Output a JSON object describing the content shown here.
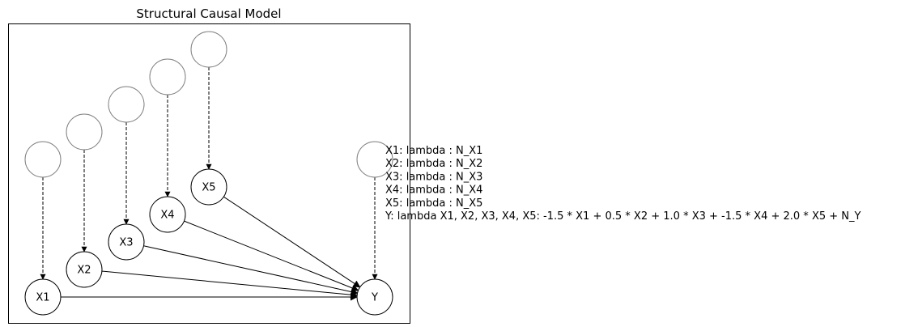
{
  "title": "Structural Causal Model",
  "nodes": [
    {
      "id": "X1",
      "label": "X1"
    },
    {
      "id": "X2",
      "label": "X2"
    },
    {
      "id": "X3",
      "label": "X3"
    },
    {
      "id": "X4",
      "label": "X4"
    },
    {
      "id": "X5",
      "label": "X5"
    },
    {
      "id": "Y",
      "label": "Y"
    }
  ],
  "noise_nodes": [
    {
      "target": "X1",
      "label": ""
    },
    {
      "target": "X2",
      "label": ""
    },
    {
      "target": "X3",
      "label": ""
    },
    {
      "target": "X4",
      "label": ""
    },
    {
      "target": "X5",
      "label": ""
    },
    {
      "target": "Y",
      "label": ""
    }
  ],
  "edges": [
    {
      "from": "X1",
      "to": "Y"
    },
    {
      "from": "X2",
      "to": "Y"
    },
    {
      "from": "X3",
      "to": "Y"
    },
    {
      "from": "X4",
      "to": "Y"
    },
    {
      "from": "X5",
      "to": "Y"
    }
  ],
  "equations": [
    "X1: lambda : N_X1",
    "X2: lambda : N_X2",
    "X3: lambda : N_X3",
    "X4: lambda : N_X4",
    "X5: lambda : N_X5",
    "Y: lambda X1, X2, X3, X4, X5: -1.5 * X1 + 0.5 * X2 + 1.0 * X3 + -1.5 * X4 + 2.0 * X5 + N_Y"
  ],
  "colors": {
    "node_border": "#000000",
    "noise_border": "#808080",
    "edge": "#000000"
  }
}
